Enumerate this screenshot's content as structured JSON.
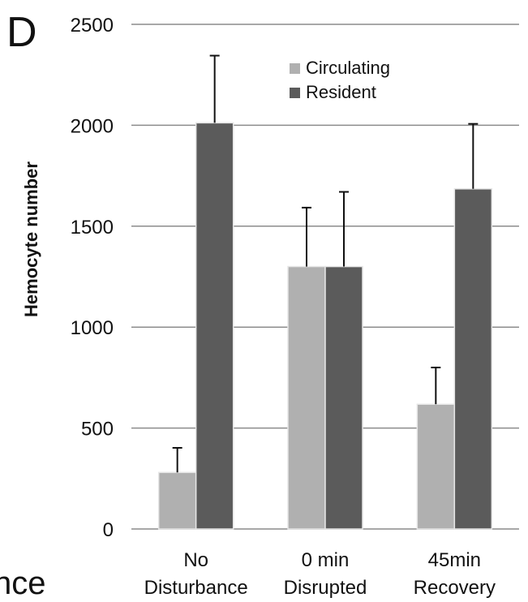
{
  "panel_label": "D",
  "cut_text": "nce",
  "colors": {
    "circulating": "#b0b0b0",
    "resident": "#5b5b5b",
    "grid": "#8c8c8c",
    "error": "#111111"
  },
  "chart_data": {
    "type": "bar",
    "ylabel": "Hemocyte number",
    "ylim": [
      0,
      2500
    ],
    "yticks": [
      0,
      500,
      1000,
      1500,
      2000,
      2500
    ],
    "grid": true,
    "legend_position": "top-right",
    "categories": [
      {
        "line1": "No",
        "line2": "Disturbance"
      },
      {
        "line1": "0 min",
        "line2": "Disrupted"
      },
      {
        "line1": "45min",
        "line2": "Recovery"
      }
    ],
    "series": [
      {
        "name": "Circulating",
        "values": [
          280,
          1300,
          618
        ],
        "error": [
          122,
          292,
          182
        ]
      },
      {
        "name": "Resident",
        "values": [
          2012,
          1300,
          1685
        ],
        "error": [
          333,
          370,
          322
        ]
      }
    ]
  }
}
